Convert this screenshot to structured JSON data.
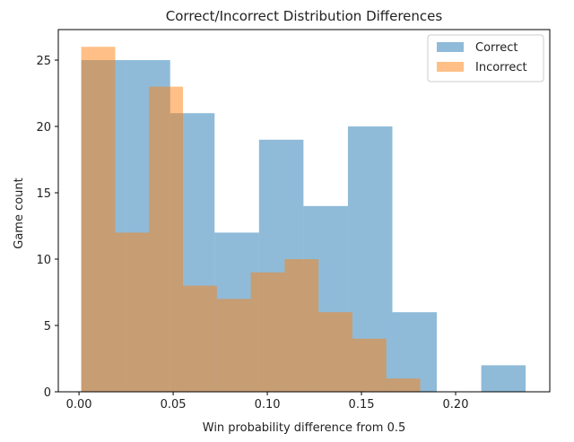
{
  "chart_data": {
    "type": "histogram",
    "title": "Correct/Incorrect Distribution Differences",
    "xlabel": "Win probability difference from 0.5",
    "ylabel": "Game count",
    "xlim": [
      -0.011,
      0.25
    ],
    "ylim": [
      0,
      27.3
    ],
    "xticks": [
      0.0,
      0.05,
      0.1,
      0.15,
      0.2
    ],
    "xtick_labels": [
      "0.00",
      "0.05",
      "0.10",
      "0.15",
      "0.20"
    ],
    "yticks": [
      0,
      5,
      10,
      15,
      20,
      25
    ],
    "ytick_labels": [
      "0",
      "5",
      "10",
      "15",
      "20",
      "25"
    ],
    "legend_position": "top-right",
    "grid": false,
    "series": [
      {
        "name": "Correct",
        "color": "#1f77b4",
        "opacity": 0.5,
        "bin_edges": [
          0.0012,
          0.0248,
          0.0484,
          0.072,
          0.0956,
          0.1192,
          0.1428,
          0.1664,
          0.19,
          0.2136,
          0.2372
        ],
        "counts": [
          25,
          25,
          21,
          12,
          19,
          14,
          20,
          6,
          0,
          2
        ]
      },
      {
        "name": "Incorrect",
        "color": "#ff7f0e",
        "opacity": 0.5,
        "bin_edges": [
          0.0012,
          0.0192,
          0.0372,
          0.0552,
          0.0732,
          0.0912,
          0.1092,
          0.1272,
          0.1452,
          0.1632,
          0.1812
        ],
        "counts": [
          26,
          12,
          23,
          8,
          7,
          9,
          10,
          6,
          4,
          1
        ]
      }
    ]
  }
}
